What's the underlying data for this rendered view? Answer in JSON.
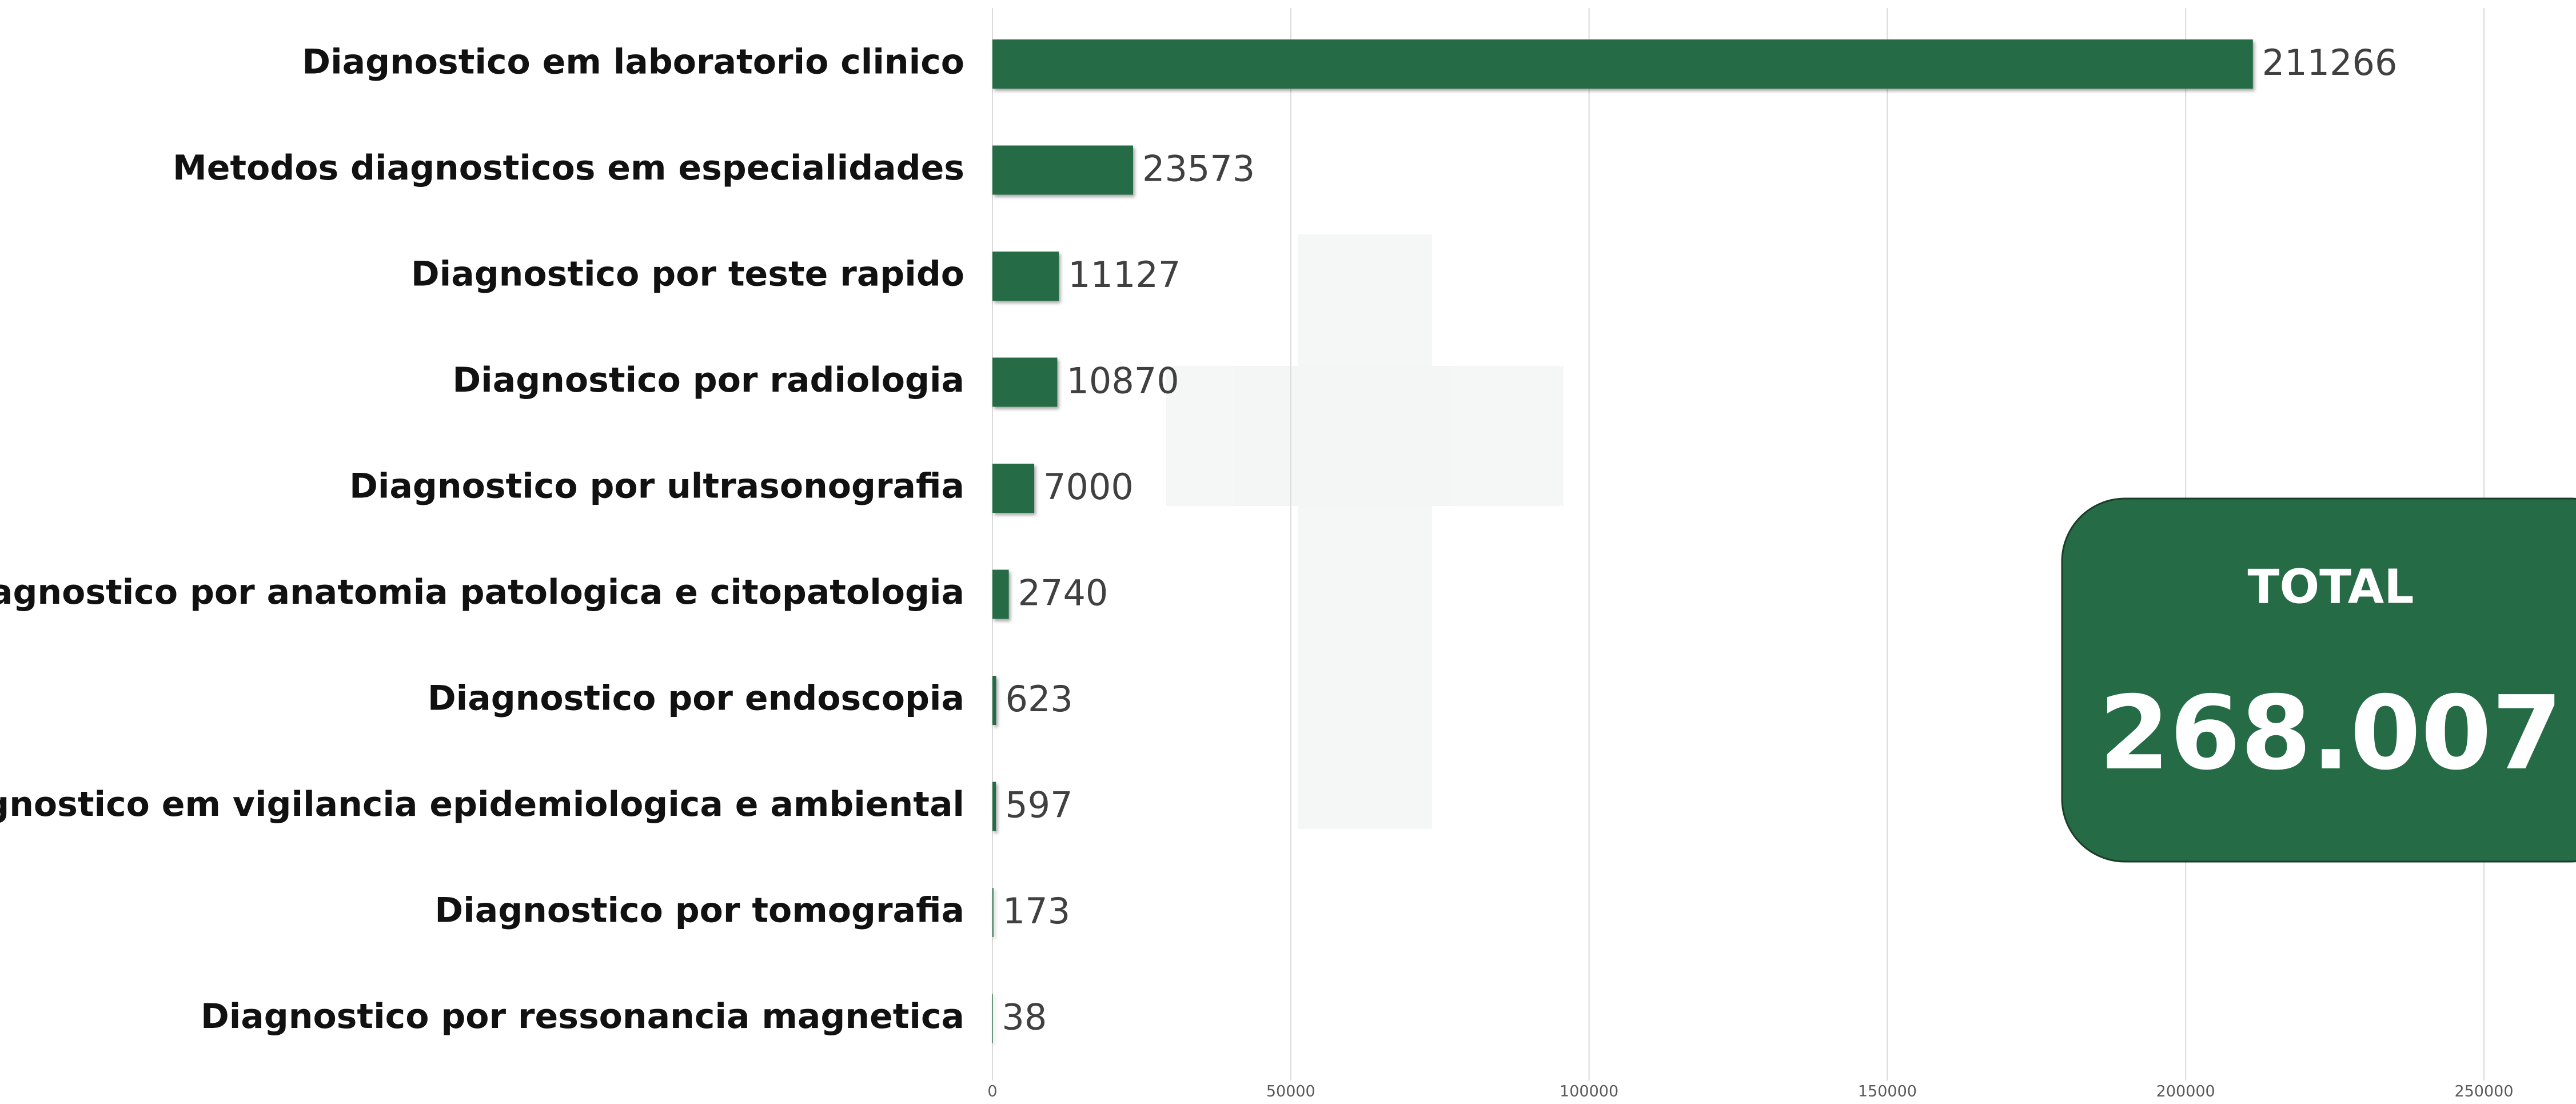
{
  "chart_data": {
    "type": "bar",
    "orientation": "horizontal",
    "categories": [
      "Diagnostico em laboratorio clinico",
      "Metodos diagnosticos em especialidades",
      "Diagnostico por teste rapido",
      "Diagnostico por radiologia",
      "Diagnostico por ultrasonografia",
      "Diagnostico por anatomia patologica e citopatologia",
      "Diagnostico por endoscopia",
      "Diagnostico em vigilancia epidemiologica e ambiental",
      "Diagnostico por tomografia",
      "Diagnostico por ressonancia magnetica"
    ],
    "values": [
      211266,
      23573,
      11127,
      10870,
      7000,
      2740,
      623,
      597,
      173,
      38
    ],
    "color": "#256b45",
    "xlim": [
      0,
      250000
    ],
    "xticks": [
      0,
      50000,
      100000,
      150000,
      200000,
      250000
    ],
    "grid": true,
    "total_label": "TOTAL",
    "total_value": "268.007"
  }
}
